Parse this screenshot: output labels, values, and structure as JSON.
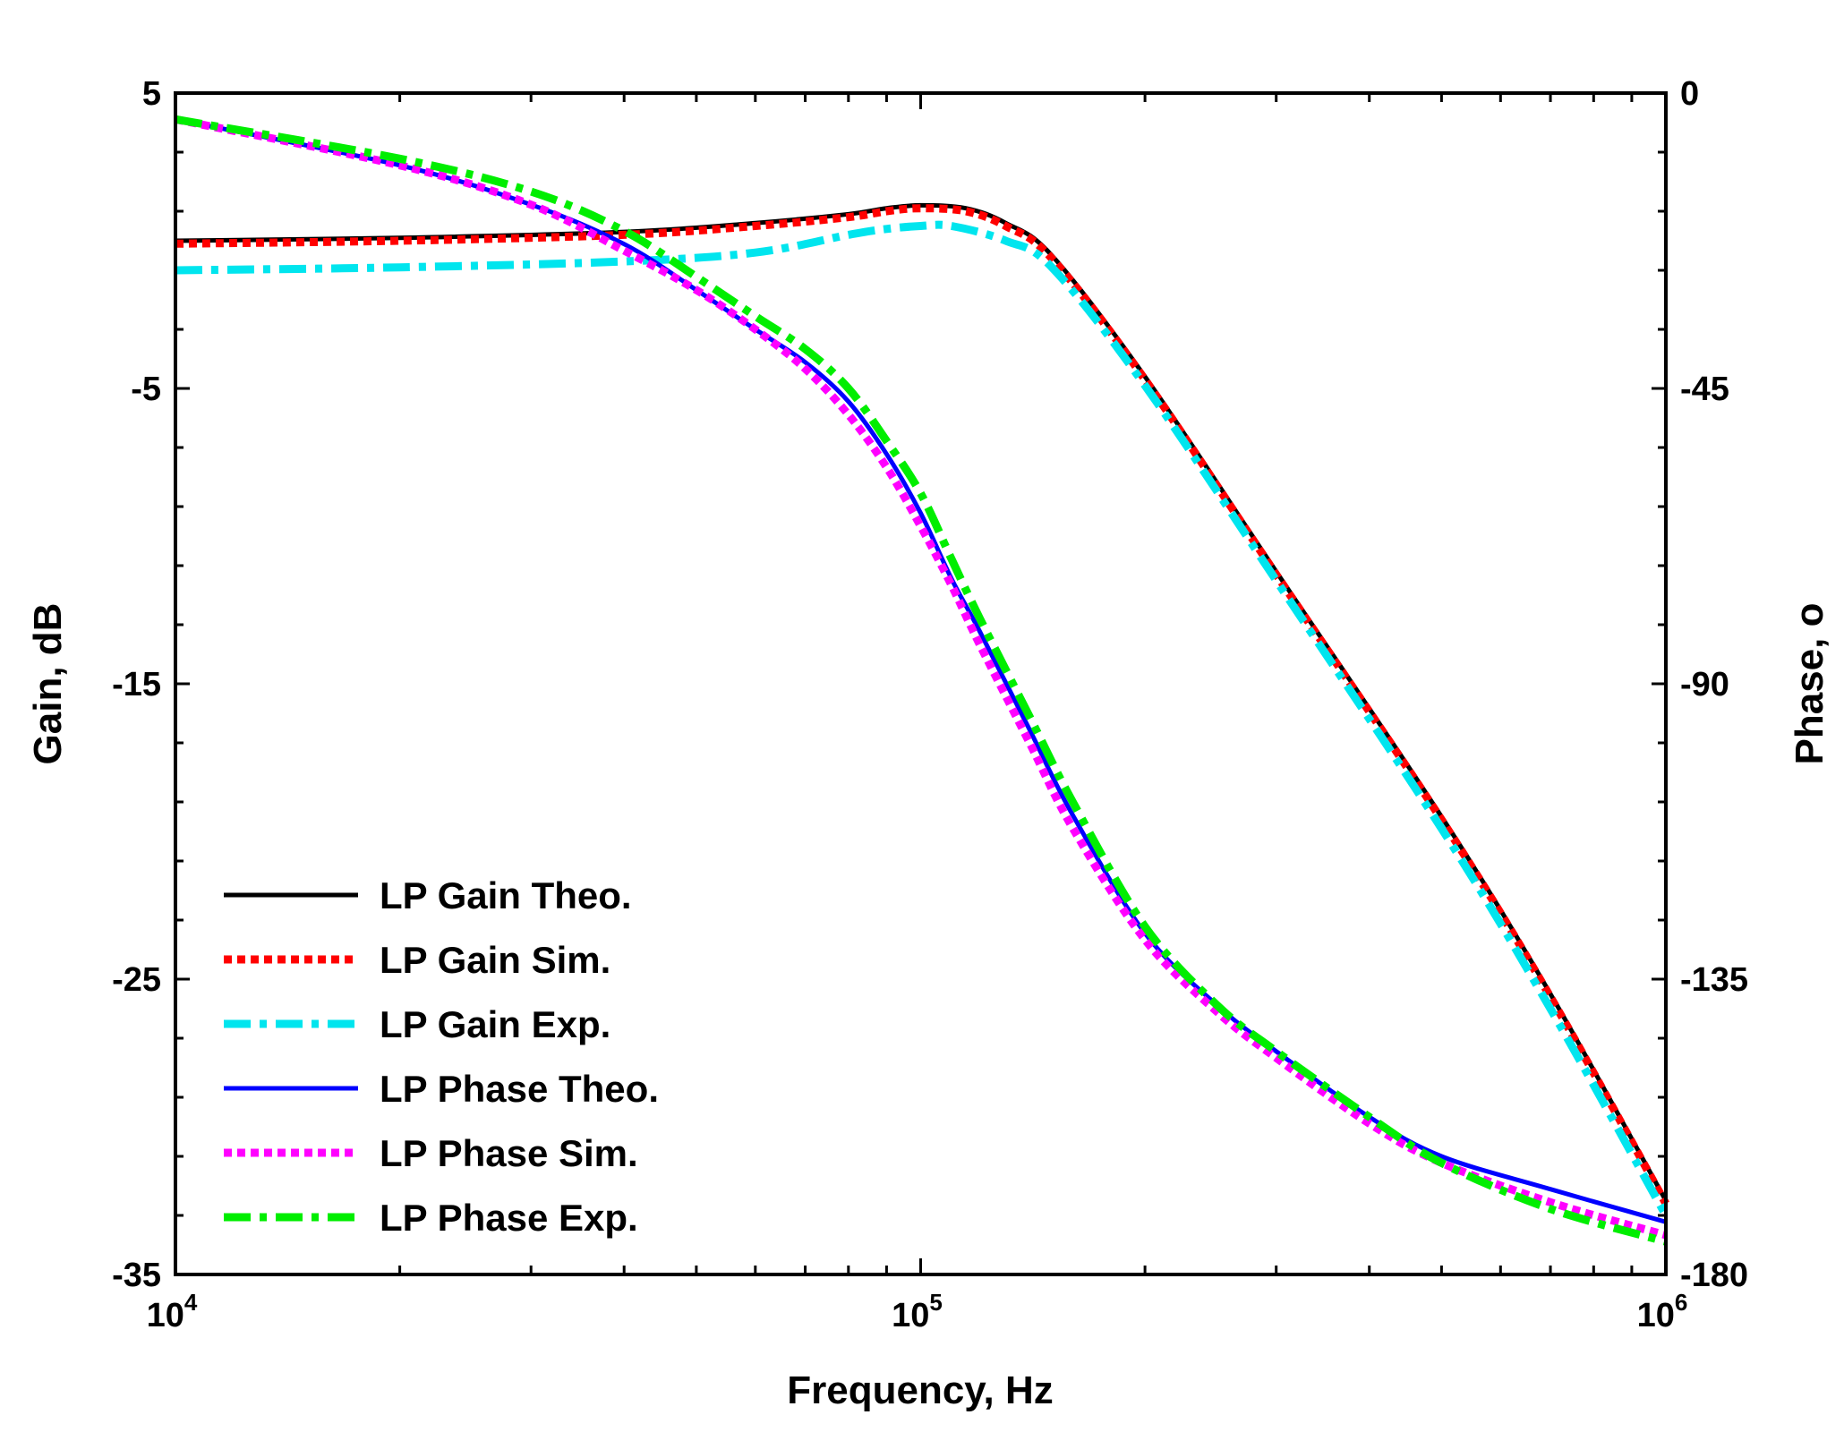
{
  "chart_data": {
    "type": "line",
    "title": "",
    "xlabel": "Frequency, Hz",
    "ylabel": "Gain, dB",
    "y2label": "Phase, o",
    "xscale": "log",
    "xlim": [
      10000,
      1000000
    ],
    "ylim": [
      -35,
      5
    ],
    "y2lim": [
      -180,
      0
    ],
    "x_ticks": [
      {
        "value": 10000,
        "base": "10",
        "exp": "4"
      },
      {
        "value": 100000,
        "base": "10",
        "exp": "5"
      },
      {
        "value": 1000000,
        "base": "10",
        "exp": "6"
      }
    ],
    "y_ticks": [
      {
        "value": 5,
        "label": "5"
      },
      {
        "value": -5,
        "label": "-5"
      },
      {
        "value": -15,
        "label": "-15"
      },
      {
        "value": -25,
        "label": "-25"
      },
      {
        "value": -35,
        "label": "-35"
      }
    ],
    "y2_ticks": [
      {
        "value": 0,
        "label": "0"
      },
      {
        "value": -45,
        "label": "-45"
      },
      {
        "value": -90,
        "label": "-90"
      },
      {
        "value": -135,
        "label": "-135"
      },
      {
        "value": -180,
        "label": "-180"
      }
    ],
    "grid": false,
    "legend_position": "bottom-left",
    "series": [
      {
        "name": "LP Gain Theo.",
        "axis": "left",
        "color": "#000000",
        "style": "solid",
        "x": [
          10000,
          20000,
          40000,
          60000,
          80000,
          90000,
          100000,
          115000,
          130000,
          150000,
          200000,
          300000,
          500000,
          700000,
          1000000
        ],
        "y": [
          0.0,
          0.1,
          0.3,
          0.6,
          0.9,
          1.1,
          1.2,
          1.1,
          0.6,
          -0.5,
          -4.6,
          -11.2,
          -19.5,
          -25.5,
          -32.5
        ]
      },
      {
        "name": "LP Gain Sim.",
        "axis": "left",
        "color": "#ff0000",
        "style": "dotted",
        "x": [
          10000,
          20000,
          40000,
          60000,
          80000,
          90000,
          100000,
          115000,
          130000,
          150000,
          200000,
          300000,
          500000,
          700000,
          1000000
        ],
        "y": [
          -0.1,
          0.0,
          0.2,
          0.5,
          0.8,
          1.0,
          1.1,
          1.0,
          0.5,
          -0.6,
          -4.7,
          -11.3,
          -19.6,
          -25.6,
          -32.6
        ]
      },
      {
        "name": "LP Gain Exp.",
        "axis": "left",
        "color": "#00e5ee",
        "style": "dashdot",
        "x": [
          10000,
          20000,
          40000,
          60000,
          80000,
          90000,
          100000,
          110000,
          130000,
          150000,
          200000,
          300000,
          500000,
          700000,
          1000000
        ],
        "y": [
          -1.0,
          -0.9,
          -0.7,
          -0.4,
          0.2,
          0.4,
          0.5,
          0.5,
          0.0,
          -0.9,
          -4.9,
          -11.5,
          -19.9,
          -26.0,
          -33.0
        ]
      },
      {
        "name": "LP Phase Theo.",
        "axis": "right",
        "color": "#0000ff",
        "style": "solid",
        "x": [
          10000,
          20000,
          30000,
          40000,
          50000,
          60000,
          70000,
          80000,
          90000,
          100000,
          110000,
          120000,
          140000,
          160000,
          200000,
          250000,
          300000,
          400000,
          500000,
          700000,
          1000000
        ],
        "y": [
          -4,
          -11,
          -17,
          -23,
          -30,
          -36,
          -41,
          -47,
          -55,
          -64,
          -74,
          -82,
          -97,
          -110,
          -128,
          -139,
          -146,
          -156,
          -162,
          -167,
          -172
        ]
      },
      {
        "name": "LP Phase Sim.",
        "axis": "right",
        "color": "#ff00ff",
        "style": "dotted",
        "x": [
          10000,
          20000,
          30000,
          40000,
          50000,
          60000,
          70000,
          80000,
          90000,
          100000,
          110000,
          120000,
          140000,
          160000,
          200000,
          250000,
          300000,
          400000,
          500000,
          700000,
          1000000
        ],
        "y": [
          -4,
          -11,
          -17,
          -24,
          -30,
          -36,
          -42,
          -49,
          -57,
          -66,
          -75,
          -84,
          -99,
          -112,
          -129,
          -140,
          -147,
          -157,
          -163,
          -169,
          -174
        ]
      },
      {
        "name": "LP Phase Exp.",
        "axis": "right",
        "color": "#00ee00",
        "style": "dashdot",
        "x": [
          10000,
          20000,
          30000,
          40000,
          50000,
          60000,
          70000,
          80000,
          90000,
          100000,
          110000,
          120000,
          140000,
          160000,
          200000,
          250000,
          300000,
          400000,
          500000,
          700000,
          1000000
        ],
        "y": [
          -4,
          -10,
          -15,
          -21,
          -28,
          -34,
          -39,
          -45,
          -53,
          -61,
          -71,
          -80,
          -95,
          -108,
          -127,
          -139,
          -146,
          -156,
          -163,
          -170,
          -175
        ]
      }
    ]
  }
}
